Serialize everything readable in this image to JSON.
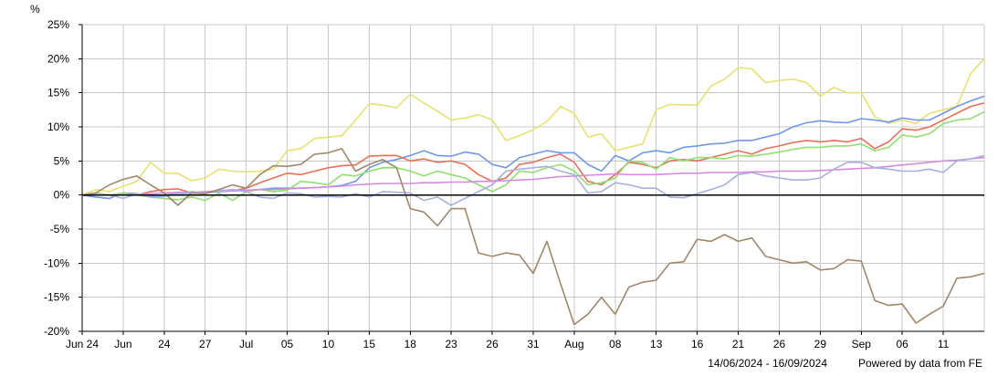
{
  "chart_data": {
    "type": "line",
    "y_unit": "%",
    "ylim": [
      -20,
      25
    ],
    "y_ticks": [
      25,
      20,
      15,
      10,
      5,
      0,
      -5,
      -10,
      -15,
      -20
    ],
    "y_tick_labels": [
      "25%",
      "20%",
      "15%",
      "10%",
      "5%",
      "0%",
      "-5%",
      "-10%",
      "-15%",
      "-20%"
    ],
    "x_count": 67,
    "x_ticks": [
      {
        "i": 0,
        "label": "Jun 24"
      },
      {
        "i": 3,
        "label": "Jun"
      },
      {
        "i": 6,
        "label": "24"
      },
      {
        "i": 9,
        "label": "27"
      },
      {
        "i": 12,
        "label": "Jul"
      },
      {
        "i": 15,
        "label": "05"
      },
      {
        "i": 18,
        "label": "10"
      },
      {
        "i": 21,
        "label": "15"
      },
      {
        "i": 24,
        "label": "18"
      },
      {
        "i": 27,
        "label": "23"
      },
      {
        "i": 30,
        "label": "26"
      },
      {
        "i": 33,
        "label": "31"
      },
      {
        "i": 36,
        "label": "Aug"
      },
      {
        "i": 39,
        "label": "08"
      },
      {
        "i": 42,
        "label": "13"
      },
      {
        "i": 45,
        "label": "16"
      },
      {
        "i": 48,
        "label": "21"
      },
      {
        "i": 51,
        "label": "26"
      },
      {
        "i": 54,
        "label": "29"
      },
      {
        "i": 57,
        "label": "Sep"
      },
      {
        "i": 60,
        "label": "06"
      },
      {
        "i": 63,
        "label": "11"
      }
    ],
    "grid": true,
    "zero_line": true,
    "footer_range": "14/06/2024 - 16/09/2024",
    "footer_credit": "Powered by data from FE",
    "series": [
      {
        "color": "#e8e070",
        "values": [
          0,
          0.8,
          0.5,
          1.3,
          2.0,
          4.8,
          3.2,
          3.2,
          2.1,
          2.5,
          3.8,
          3.5,
          3.4,
          3.5,
          3.8,
          6.5,
          6.8,
          8.3,
          8.5,
          8.7,
          11.0,
          13.4,
          13.2,
          12.8,
          14.8,
          13.5,
          12.3,
          11.0,
          11.3,
          11.8,
          11.0,
          8.0,
          8.7,
          9.6,
          10.8,
          13.0,
          12.0,
          8.5,
          9.0,
          6.5,
          7.0,
          7.5,
          12.5,
          13.3,
          13.2,
          13.2,
          16.0,
          17.0,
          18.7,
          18.5,
          16.5,
          16.8,
          17.0,
          16.5,
          14.5,
          15.8,
          15.0,
          15.0,
          11.5,
          10.5,
          11.0,
          10.5,
          12.0,
          12.5,
          13.0,
          17.8,
          20.0
        ]
      },
      {
        "color": "#6f98e8",
        "values": [
          0,
          -0.3,
          -0.5,
          0.3,
          0.2,
          -0.2,
          0,
          0.2,
          0.3,
          0.3,
          0.5,
          0.6,
          0.7,
          0.8,
          1.0,
          1.0,
          1.0,
          1.1,
          1.2,
          1.4,
          2.0,
          4.0,
          4.8,
          5.2,
          5.8,
          6.5,
          5.8,
          5.7,
          6.3,
          6.0,
          4.5,
          4.0,
          5.5,
          6.0,
          6.5,
          6.2,
          6.2,
          4.5,
          3.5,
          5.8,
          5.0,
          6.2,
          6.5,
          6.2,
          7.0,
          7.2,
          7.5,
          7.6,
          8.0,
          8.0,
          8.5,
          9.0,
          10.0,
          10.6,
          10.9,
          10.7,
          10.6,
          11.2,
          11.0,
          10.7,
          11.3,
          11.0,
          11.0,
          12.0,
          13.0,
          13.8,
          14.5
        ]
      },
      {
        "color": "#e87058",
        "values": [
          0,
          0.3,
          0,
          0.2,
          0,
          0.5,
          0.8,
          0.9,
          0.3,
          0.3,
          0.7,
          0.6,
          1.0,
          1.8,
          2.5,
          3.2,
          3.0,
          3.5,
          4.0,
          4.3,
          4.4,
          5.7,
          5.8,
          5.8,
          5.0,
          5.3,
          4.8,
          5.0,
          4.5,
          3.0,
          2.0,
          2.5,
          4.5,
          4.8,
          5.5,
          6.0,
          4.8,
          2.0,
          1.5,
          3.0,
          4.8,
          4.5,
          4.0,
          5.0,
          5.2,
          5.0,
          5.5,
          6.0,
          6.5,
          6.0,
          6.8,
          7.2,
          7.7,
          8.0,
          7.8,
          8.0,
          7.8,
          8.3,
          6.8,
          7.8,
          9.7,
          9.5,
          10.0,
          11.0,
          12.0,
          13.0,
          13.5
        ]
      },
      {
        "color": "#90e070",
        "values": [
          0,
          0.3,
          0,
          0.3,
          0,
          -0.3,
          -0.5,
          -0.7,
          -0.3,
          -0.8,
          0.3,
          -0.8,
          0.5,
          0.8,
          0.5,
          0.7,
          2.0,
          1.8,
          1.5,
          3.0,
          2.8,
          3.5,
          4.0,
          4.0,
          3.5,
          2.8,
          3.5,
          3.0,
          2.5,
          1.5,
          0.5,
          1.5,
          3.5,
          3.3,
          4.0,
          4.5,
          3.5,
          1.5,
          1.8,
          2.5,
          5.0,
          4.8,
          3.8,
          5.5,
          5.0,
          5.5,
          5.5,
          5.3,
          5.8,
          5.7,
          6.0,
          6.3,
          6.7,
          7.0,
          7.0,
          7.2,
          7.2,
          7.5,
          6.5,
          7.0,
          8.8,
          8.5,
          9.0,
          10.5,
          11.0,
          11.2,
          12.2
        ]
      },
      {
        "color": "#d888e0",
        "values": [
          0,
          0,
          0,
          0,
          0.1,
          0.2,
          0.3,
          0.4,
          0.4,
          0.5,
          0.6,
          0.6,
          0.7,
          0.8,
          0.8,
          0.9,
          1.0,
          1.1,
          1.2,
          1.3,
          1.5,
          1.6,
          1.7,
          1.7,
          1.7,
          1.8,
          1.8,
          1.9,
          1.9,
          2.0,
          2.0,
          2.1,
          2.2,
          2.3,
          2.5,
          2.7,
          2.8,
          2.9,
          3.0,
          3.1,
          3.0,
          3.0,
          3.0,
          3.1,
          3.2,
          3.2,
          3.3,
          3.3,
          3.3,
          3.4,
          3.4,
          3.5,
          3.5,
          3.5,
          3.6,
          3.7,
          3.8,
          3.9,
          4.0,
          4.2,
          4.4,
          4.6,
          4.8,
          5.0,
          5.1,
          5.3,
          5.5
        ]
      },
      {
        "color": "#a8b0e0",
        "values": [
          0,
          0.1,
          0,
          -0.5,
          0.2,
          -0.3,
          -0.2,
          0.2,
          0.5,
          0.3,
          0.6,
          0.8,
          0.5,
          -0.3,
          -0.5,
          0.3,
          0.2,
          -0.3,
          -0.2,
          -0.3,
          0.2,
          -0.3,
          0.5,
          0.4,
          0.3,
          -0.8,
          -0.3,
          -1.5,
          -0.5,
          0.5,
          1.5,
          3.5,
          3.8,
          4.0,
          4.2,
          3.5,
          3.0,
          0.3,
          0.5,
          1.8,
          1.5,
          1.0,
          1.0,
          -0.3,
          -0.4,
          0.2,
          0.8,
          1.5,
          3.0,
          3.3,
          2.8,
          2.5,
          2.2,
          2.2,
          2.5,
          3.8,
          4.8,
          4.8,
          4.0,
          3.8,
          3.5,
          3.5,
          3.8,
          3.3,
          5.0,
          5.3,
          5.8
        ]
      },
      {
        "color": "#a08868",
        "values": [
          0,
          0.3,
          1.5,
          2.3,
          2.8,
          1.5,
          0.3,
          -1.5,
          0.3,
          0.2,
          0.8,
          1.5,
          1.0,
          3.0,
          4.3,
          4.2,
          4.5,
          6.0,
          6.2,
          6.8,
          3.5,
          4.5,
          5.2,
          4.0,
          -2.0,
          -2.5,
          -4.5,
          -2.0,
          -2.0,
          -8.5,
          -9.0,
          -8.5,
          -8.8,
          -11.5,
          -6.8,
          -13.0,
          -19.0,
          -17.5,
          -15.0,
          -17.5,
          -13.5,
          -12.8,
          -12.5,
          -10.0,
          -9.8,
          -6.5,
          -6.8,
          -5.8,
          -6.8,
          -6.3,
          -9.0,
          -9.5,
          -10.0,
          -9.8,
          -11.0,
          -10.8,
          -9.5,
          -9.7,
          -15.5,
          -16.2,
          -16.0,
          -18.8,
          -17.5,
          -16.3,
          -12.2,
          -12.0,
          -11.5
        ]
      }
    ]
  }
}
